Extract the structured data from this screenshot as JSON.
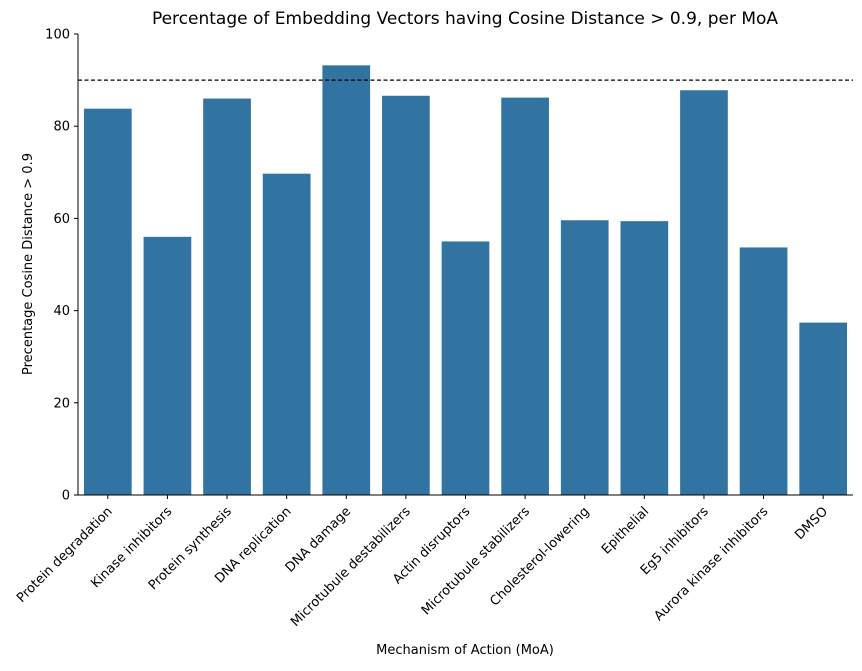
{
  "chart_data": {
    "type": "bar",
    "title": "Percentage of Embedding Vectors having Cosine Distance > 0.9, per MoA",
    "xlabel": "Mechanism of Action (MoA)",
    "ylabel": "Precentage Cosine Distance > 0.9",
    "ylim": [
      0,
      100
    ],
    "yticks": [
      0,
      20,
      40,
      60,
      80,
      100
    ],
    "categories": [
      "Protein degradation",
      "Kinase inhibitors",
      "Protein synthesis",
      "DNA replication",
      "DNA damage",
      "Microtubule destabilizers",
      "Actin disruptors",
      "Microtubule stabilizers",
      "Cholesterol-lowering",
      "Epithelial",
      "Eg5 inhibitors",
      "Aurora kinase inhibitors",
      "DMSO"
    ],
    "values": [
      83.8,
      56.0,
      86.0,
      69.7,
      93.2,
      86.6,
      55.0,
      86.2,
      59.6,
      59.4,
      87.8,
      53.7,
      37.4
    ],
    "reference_line": {
      "y": 90,
      "style": "dashed",
      "color": "#000000"
    },
    "bar_color": "#3274a1",
    "grid": false,
    "legend": "none"
  }
}
